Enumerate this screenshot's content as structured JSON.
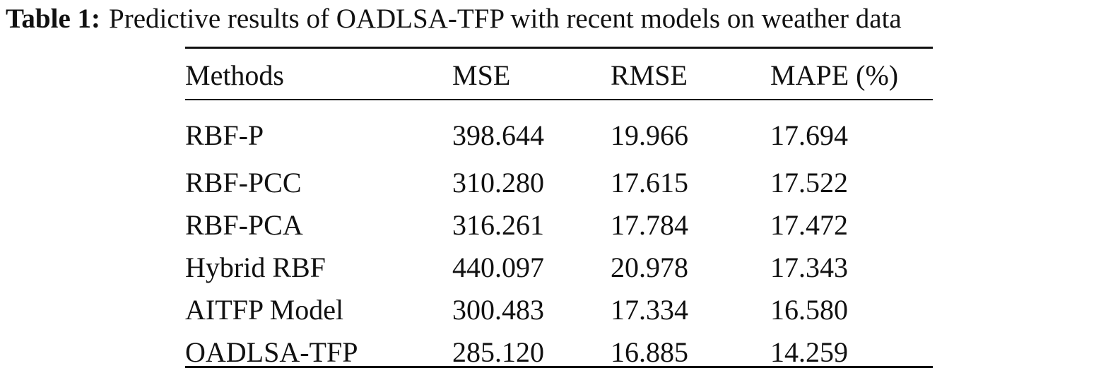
{
  "caption": {
    "label": "Table 1:",
    "text": "Predictive results of OADLSA-TFP with recent models on weather data"
  },
  "table": {
    "headers": [
      "Methods",
      "MSE",
      "RMSE",
      "MAPE (%)"
    ],
    "rows": [
      [
        "RBF-P",
        "398.644",
        "19.966",
        "17.694"
      ],
      [
        "RBF-PCC",
        "310.280",
        "17.615",
        "17.522"
      ],
      [
        "RBF-PCA",
        "316.261",
        "17.784",
        "17.472"
      ],
      [
        "Hybrid RBF",
        "440.097",
        "20.978",
        "17.343"
      ],
      [
        "AITFP Model",
        "300.483",
        "17.334",
        "16.580"
      ],
      [
        "OADLSA-TFP",
        "285.120",
        "16.885",
        "14.259"
      ]
    ]
  }
}
